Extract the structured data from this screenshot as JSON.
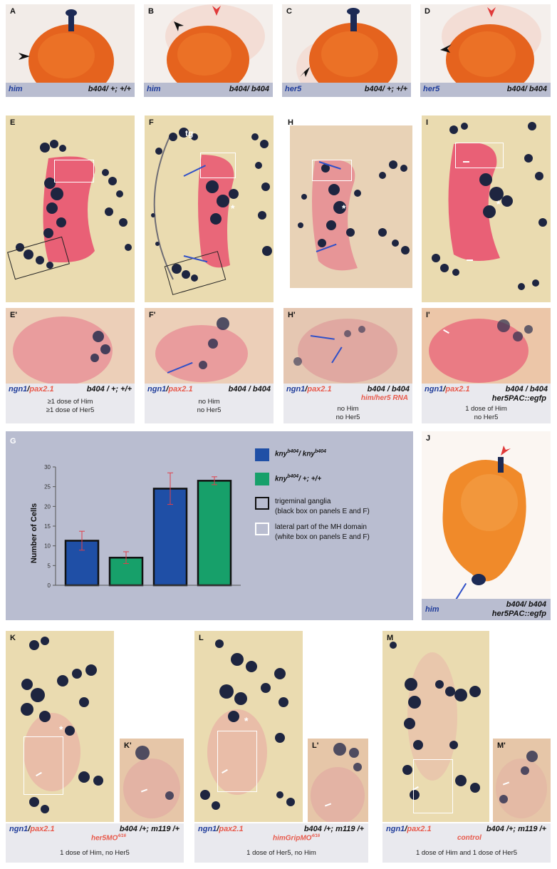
{
  "top_row": [
    {
      "letter": "A",
      "gene": "him",
      "genotype": "b404/ +; +/+"
    },
    {
      "letter": "B",
      "gene": "him",
      "genotype": "b404/ b404"
    },
    {
      "letter": "C",
      "gene": "her5",
      "genotype": "b404/ +; +/+"
    },
    {
      "letter": "D",
      "gene": "her5",
      "genotype": "b404/ b404"
    }
  ],
  "mid_row": [
    {
      "letter": "E",
      "letter2": "E'",
      "probe1": "ngn1",
      "probe2": "pax2.1",
      "genotype": "b404 / +; +/+",
      "extra": "",
      "notes": [
        "≥1 dose of Him",
        "≥1 dose of Her5"
      ]
    },
    {
      "letter": "F",
      "letter2": "F'",
      "probe1": "ngn1",
      "probe2": "pax2.1",
      "genotype": "b404 / b404",
      "extra": "",
      "notes": [
        "no Him",
        "no Her5"
      ],
      "tg_label": "tg"
    },
    {
      "letter": "H",
      "letter2": "H'",
      "probe1": "ngn1",
      "probe2": "pax2.1",
      "genotype": "b404 / b404",
      "extra": "him/her5 RNA",
      "notes": [
        "no Him",
        "no Her5"
      ]
    },
    {
      "letter": "I",
      "letter2": "I'",
      "probe1": "ngn1",
      "probe2": "pax2.1",
      "genotype": "b404 / b404",
      "extra": "her5PAC::egfp",
      "notes": [
        "1 dose of Him",
        "no Her5"
      ]
    }
  ],
  "panel_J": {
    "letter": "J",
    "gene": "him",
    "genotype_line1": "b404/ b404",
    "genotype_line2": "her5PAC::egfp"
  },
  "chart_data": {
    "type": "bar",
    "panel_letter": "G",
    "ylabel": "Number of Cells",
    "ylim": [
      0,
      30
    ],
    "yticks": [
      0,
      5,
      10,
      15,
      20,
      25,
      30
    ],
    "bars": [
      {
        "value": 11.3,
        "error": 2.4,
        "series": "kny_b404_homo",
        "region": "trigeminal ganglia",
        "color": "#1f4fa6",
        "edge": "#111111"
      },
      {
        "value": 7.0,
        "error": 1.5,
        "series": "kny_b404_het",
        "region": "trigeminal ganglia",
        "color": "#17a06a",
        "edge": "#111111"
      },
      {
        "value": 24.5,
        "error": 4.0,
        "series": "kny_b404_homo",
        "region": "lateral MH domain",
        "color": "#1f4fa6",
        "edge": "#111111"
      },
      {
        "value": 26.5,
        "error": 1.0,
        "series": "kny_b404_het",
        "region": "lateral MH domain",
        "color": "#17a06a",
        "edge": "#111111"
      }
    ],
    "legend": [
      {
        "label": "kny",
        "sup1": "b404",
        "mid": "/ kny",
        "sup2": "b404",
        "color": "#1f4fa6"
      },
      {
        "label": "kny",
        "sup1": "b404",
        "mid": "/ +; +/+",
        "sup2": "",
        "color": "#17a06a"
      },
      {
        "label_line1": "trigeminal ganglia",
        "label_line2": "(black box on panels E and F)",
        "color": "#b9bdd0",
        "edge": "#111111"
      },
      {
        "label_line1": "lateral part of the MH domain",
        "label_line2": "(white box on panels E and F)",
        "color": "#b9bdd0",
        "edge": "#ffffff"
      }
    ],
    "errorbar_color": "#e0404a"
  },
  "bottom_row": [
    {
      "letter": "K",
      "letter2": "K'",
      "probe1": "ngn1",
      "probe2": "pax2.1",
      "genotype": "b404 /+; m119 /+",
      "extra": "her5MO",
      "extra_sup": "4/16",
      "note": "1 dose of Him, no Her5"
    },
    {
      "letter": "L",
      "letter2": "L'",
      "probe1": "ngn1",
      "probe2": "pax2.1",
      "genotype": "b404 /+; m119 /+",
      "extra": "himGripMO",
      "extra_sup": "4/16",
      "note": "1 dose of Her5, no Him"
    },
    {
      "letter": "M",
      "letter2": "M'",
      "probe1": "ngn1",
      "probe2": "pax2.1",
      "genotype": "b404 /+; m119 /+",
      "extra": "control",
      "extra_sup": "",
      "note": "1 dose of Him and 1 dose of Her5"
    }
  ]
}
